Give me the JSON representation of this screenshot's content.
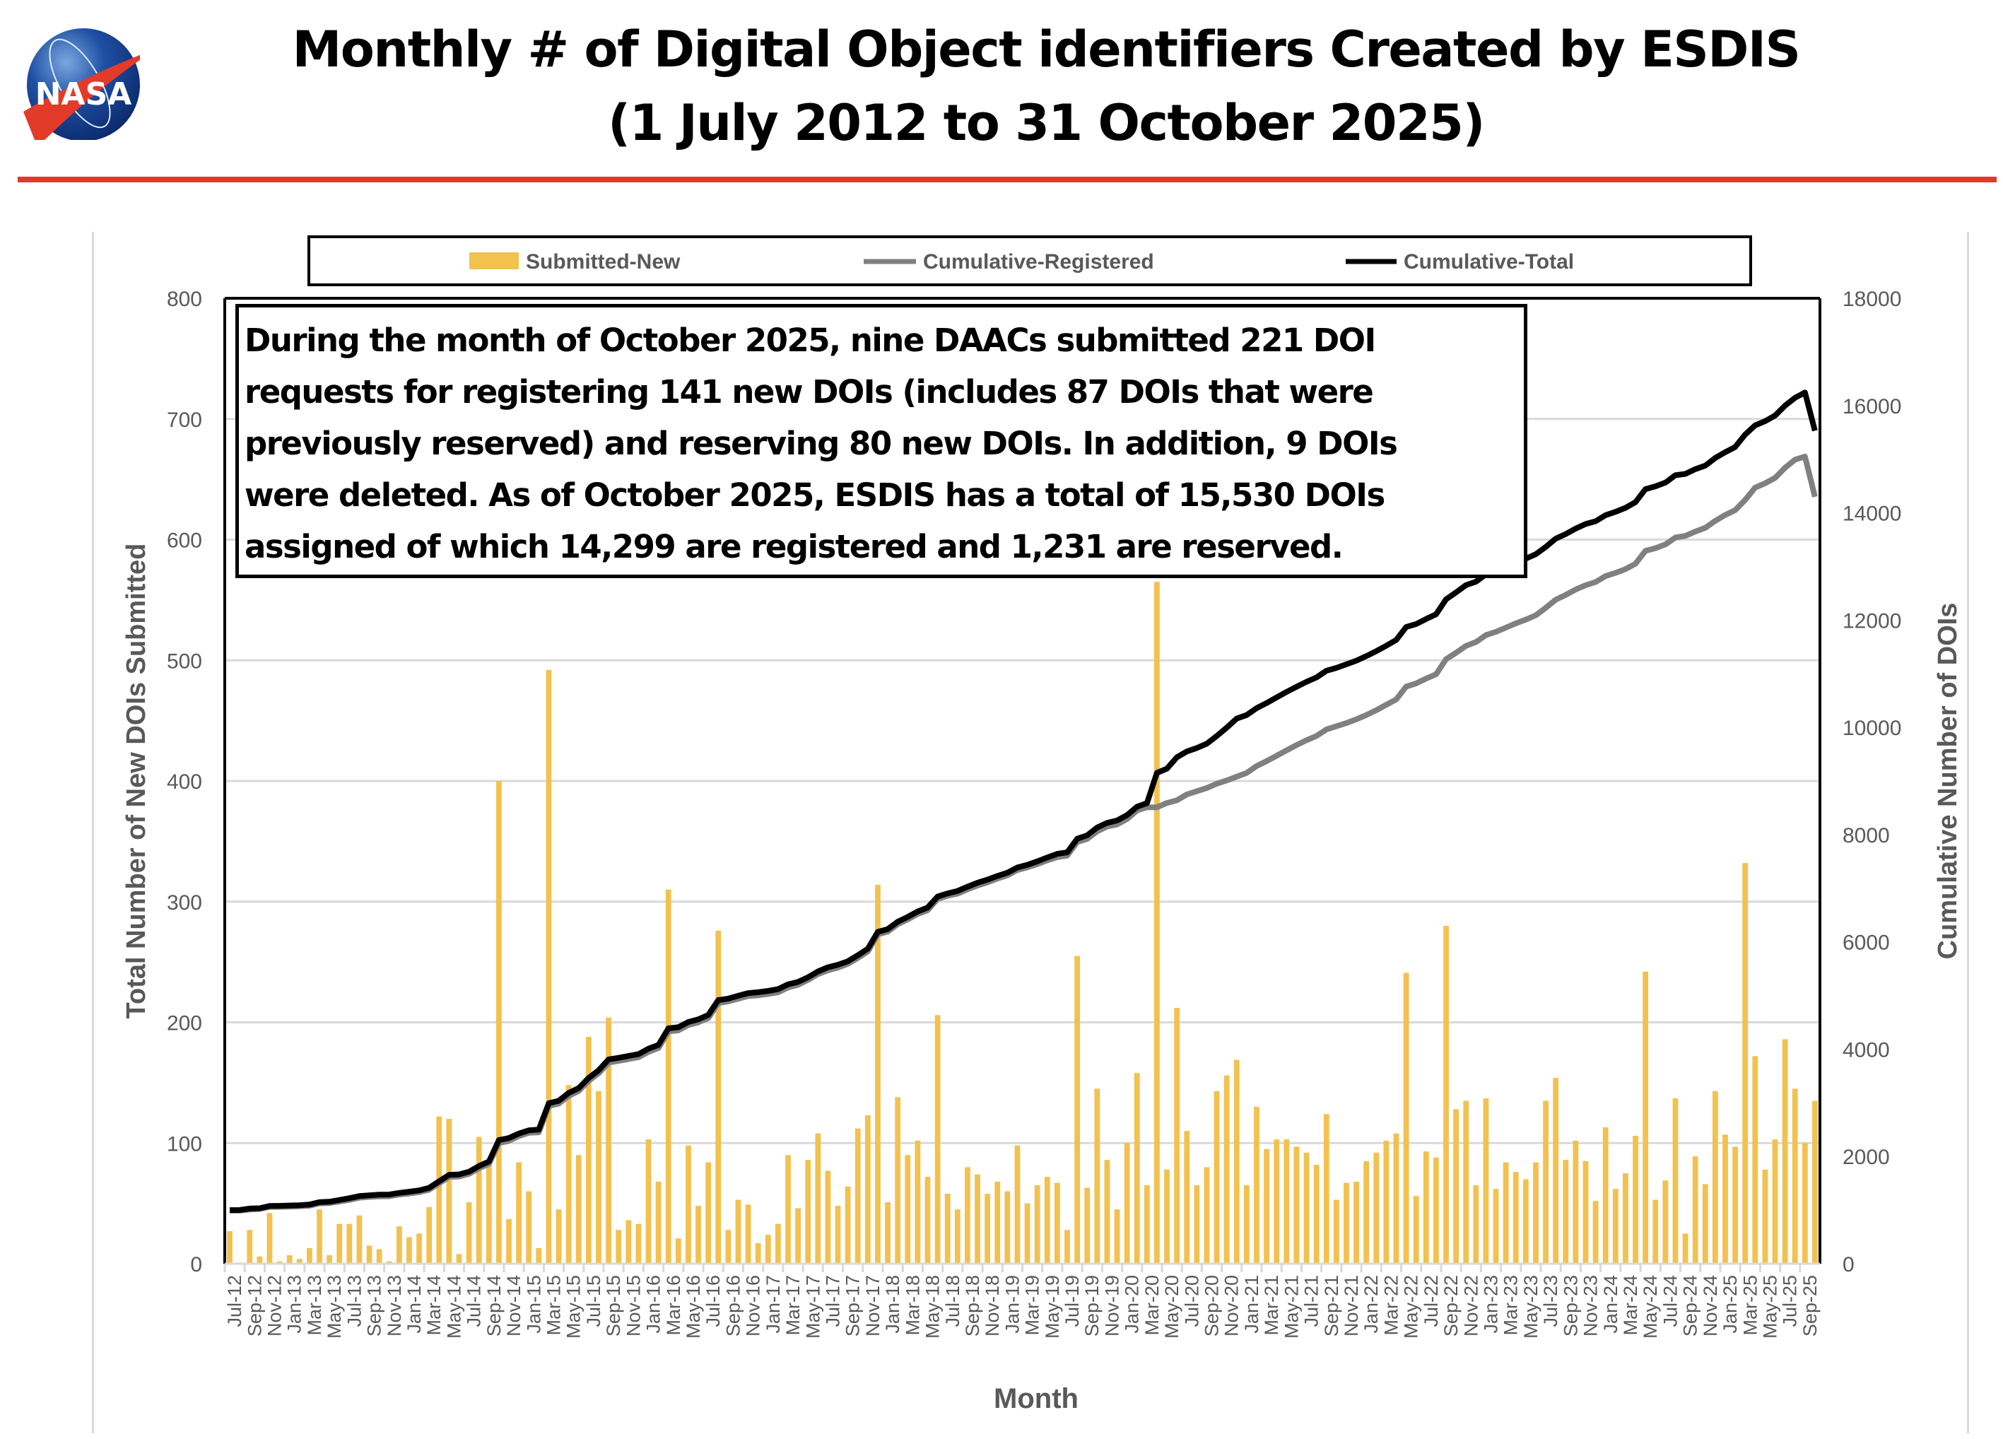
{
  "header": {
    "logo_label": "NASA",
    "title_line1": "Monthly # of Digital Object identifiers Created by ESDIS",
    "title_line2": "(1 July 2012 to 31 October 2025)",
    "accent_color": "#d83a2a"
  },
  "annotation": {
    "lines": [
      "During the month of October 2025, nine DAACs submitted 221 DOI",
      "requests for registering 141 new DOIs (includes 87 DOIs that were",
      "previously reserved) and reserving 80 new DOIs. In addition, 9 DOIs",
      "were deleted. As of October 2025, ESDIS has a total of 15,530 DOIs",
      "assigned of which 14,299 are registered and 1,231 are reserved."
    ]
  },
  "chart_data": {
    "type": "bar+line",
    "title": "Monthly # of Digital Object identifiers Created by ESDIS (1 July 2012 to 31 October 2025)",
    "xlabel": "Month",
    "ylabel_left": "Total Number of New DOIs Submitted",
    "ylabel_right": "Cumulative Number of DOIs",
    "ylim_left": [
      0,
      800
    ],
    "ylim_right": [
      0,
      18000
    ],
    "yticks_left": [
      0,
      100,
      200,
      300,
      400,
      500,
      600,
      700,
      800
    ],
    "yticks_right": [
      0,
      2000,
      4000,
      6000,
      8000,
      10000,
      12000,
      14000,
      16000,
      18000
    ],
    "grid": true,
    "legend_position": "top",
    "legend": [
      {
        "name": "Submitted-New",
        "kind": "bar",
        "color": "#f2c14e"
      },
      {
        "name": "Cumulative-Registered",
        "kind": "line",
        "color": "#808080"
      },
      {
        "name": "Cumulative-Total",
        "kind": "line",
        "color": "#000000"
      }
    ],
    "start_month": "Jul-12",
    "end_month": "Oct-25",
    "months_count": 160,
    "tick_every": 2,
    "series": [
      {
        "name": "Submitted-New",
        "axis": "left",
        "values": [
          27,
          1,
          28,
          6,
          42,
          2,
          7,
          4,
          13,
          45,
          7,
          33,
          33,
          40,
          15,
          12,
          2,
          31,
          22,
          25,
          47,
          122,
          120,
          8,
          51,
          105,
          85,
          400,
          37,
          84,
          60,
          13,
          492,
          45,
          148,
          90,
          188,
          143,
          204,
          28,
          36,
          33,
          103,
          68,
          310,
          21,
          98,
          48,
          84,
          276,
          28,
          53,
          49,
          17,
          24,
          33,
          90,
          46,
          86,
          108,
          77,
          48,
          64,
          112,
          123,
          314,
          51,
          138,
          90,
          102,
          72,
          206,
          58,
          45,
          80,
          74,
          58,
          68,
          60,
          98,
          50,
          65,
          72,
          67,
          28,
          255,
          63,
          145,
          86,
          45,
          100,
          158,
          65,
          565,
          78,
          212,
          110,
          65,
          80,
          143,
          156,
          169,
          65,
          130,
          95,
          103,
          103,
          97,
          92,
          82,
          124,
          53,
          67,
          68,
          85,
          92,
          102,
          108,
          241,
          56,
          93,
          88,
          280,
          128,
          135,
          65,
          137,
          62,
          84,
          76,
          70,
          84,
          135,
          154,
          86,
          102,
          85,
          52,
          113,
          62,
          75,
          106,
          242,
          53,
          69,
          137,
          25,
          89,
          66,
          143,
          107,
          97,
          332,
          172,
          78,
          103,
          186,
          145,
          100,
          135
        ]
      },
      {
        "name": "Cumulative-Registered",
        "axis": "right",
        "values": [
          990,
          990,
          1010,
          1020,
          1060,
          1060,
          1065,
          1070,
          1080,
          1125,
          1130,
          1160,
          1190,
          1230,
          1245,
          1255,
          1257,
          1290,
          1310,
          1335,
          1380,
          1500,
          1620,
          1625,
          1675,
          1780,
          1860,
          2250,
          2290,
          2380,
          2440,
          2450,
          2940,
          2985,
          3130,
          3220,
          3410,
          3550,
          3750,
          3780,
          3815,
          3850,
          3950,
          4020,
          4330,
          4350,
          4450,
          4500,
          4580,
          4860,
          4890,
          4940,
          4990,
          5005,
          5030,
          5060,
          5150,
          5200,
          5290,
          5400,
          5470,
          5520,
          5590,
          5700,
          5820,
          6140,
          6190,
          6330,
          6420,
          6520,
          6590,
          6800,
          6860,
          6900,
          6980,
          7050,
          7110,
          7180,
          7240,
          7340,
          7390,
          7450,
          7520,
          7580,
          7610,
          7860,
          7920,
          8060,
          8150,
          8190,
          8290,
          8450,
          8510,
          8510,
          8590,
          8640,
          8750,
          8810,
          8870,
          8950,
          9010,
          9080,
          9150,
          9280,
          9370,
          9470,
          9570,
          9670,
          9760,
          9840,
          9960,
          10020,
          10080,
          10150,
          10230,
          10320,
          10420,
          10520,
          10760,
          10820,
          10910,
          10990,
          11270,
          11390,
          11520,
          11590,
          11720,
          11780,
          11860,
          11940,
          12010,
          12090,
          12230,
          12380,
          12470,
          12570,
          12650,
          12710,
          12820,
          12880,
          12950,
          13050,
          13290,
          13340,
          13410,
          13540,
          13570,
          13650,
          13720,
          13850,
          13960,
          14050,
          14240,
          14470,
          14550,
          14650,
          14840,
          14990,
          15050,
          14299
        ]
      },
      {
        "name": "Cumulative-Total",
        "axis": "right",
        "values": [
          1000,
          1001,
          1029,
          1035,
          1077,
          1079,
          1086,
          1090,
          1103,
          1148,
          1155,
          1188,
          1221,
          1261,
          1276,
          1288,
          1290,
          1321,
          1343,
          1368,
          1415,
          1537,
          1657,
          1665,
          1716,
          1821,
          1906,
          2306,
          2343,
          2427,
          2487,
          2500,
          2992,
          3037,
          3185,
          3275,
          3463,
          3606,
          3810,
          3838,
          3874,
          3907,
          4010,
          4078,
          4388,
          4409,
          4507,
          4555,
          4639,
          4915,
          4943,
          4996,
          5045,
          5062,
          5086,
          5119,
          5209,
          5255,
          5341,
          5449,
          5526,
          5574,
          5638,
          5750,
          5873,
          6187,
          6238,
          6376,
          6466,
          6568,
          6640,
          6846,
          6904,
          6949,
          7029,
          7103,
          7161,
          7229,
          7289,
          7387,
          7437,
          7502,
          7574,
          7641,
          7669,
          7924,
          7987,
          8132,
          8218,
          8263,
          8363,
          8521,
          8586,
          9151,
          9229,
          9441,
          9551,
          9616,
          9696,
          9839,
          9995,
          10164,
          10229,
          10359,
          10454,
          10557,
          10660,
          10757,
          10849,
          10931,
          11055,
          11108,
          11175,
          11243,
          11328,
          11420,
          11522,
          11630,
          11871,
          11927,
          12020,
          12108,
          12388,
          12516,
          12651,
          12716,
          12853,
          12915,
          12999,
          13075,
          13145,
          13229,
          13364,
          13518,
          13604,
          13706,
          13791,
          13843,
          13956,
          14018,
          14093,
          14199,
          14441,
          14494,
          14563,
          14700,
          14725,
          14814,
          14880,
          15023,
          15130,
          15227,
          15459,
          15631,
          15709,
          15812,
          15998,
          16143,
          16243,
          15530
        ]
      }
    ]
  }
}
